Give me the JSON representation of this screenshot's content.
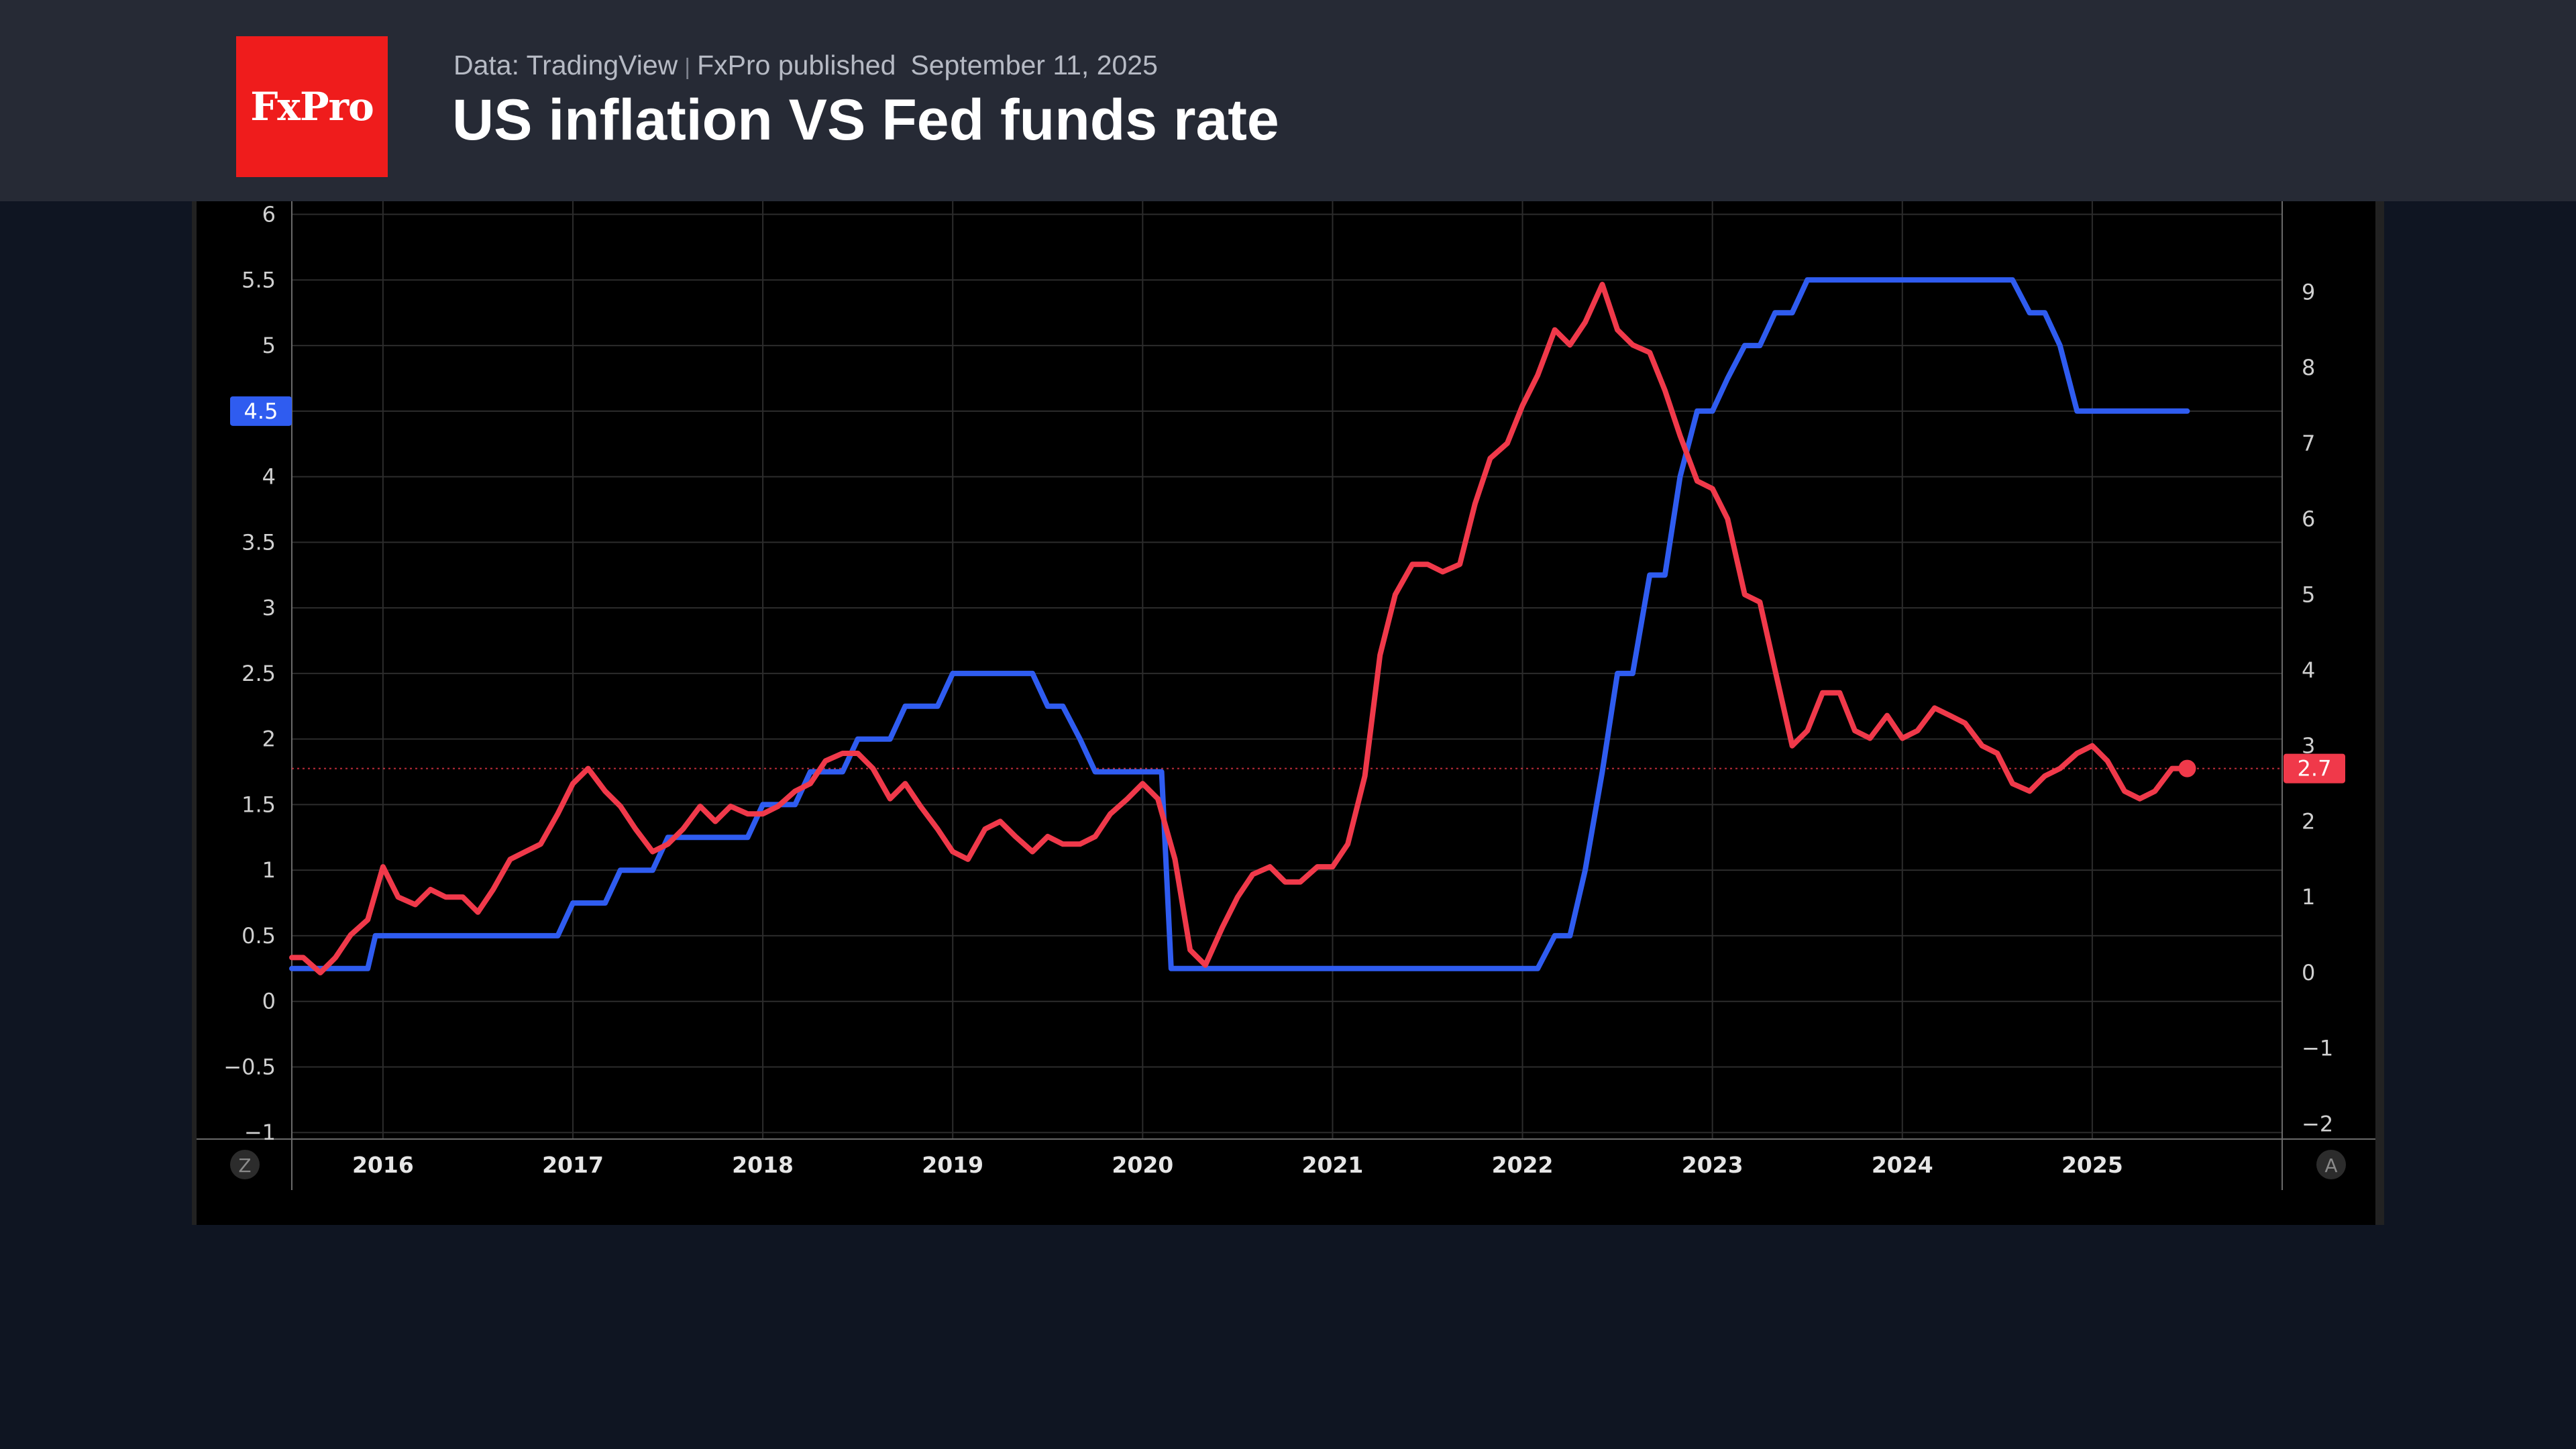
{
  "header": {
    "logo_text": "FxPro",
    "source": "Data: TradingView",
    "separator": "|",
    "publisher": "FxPro published",
    "date": "September 11, 2025",
    "title": "US inflation VS Fed funds rate"
  },
  "colors": {
    "fed_funds": "#2f5cf0",
    "inflation": "#f0394a",
    "logo": "#ef1c1c"
  },
  "chart_data": {
    "type": "line",
    "title": "US inflation VS Fed funds rate",
    "grid": true,
    "left_axis": {
      "ticks": [
        "6",
        "5.5",
        "5",
        "4.5",
        "4",
        "3.5",
        "3",
        "2.5",
        "2",
        "1.5",
        "1",
        "0.5",
        "0",
        "−0.5",
        "−1"
      ],
      "range": [
        -1.05,
        6.1
      ],
      "last_value_label": "4.5"
    },
    "right_axis": {
      "ticks": [
        "9",
        "8",
        "7",
        "6",
        "5",
        "4",
        "3",
        "2",
        "1",
        "0",
        "−1",
        "−2"
      ],
      "range": [
        -2.2,
        10.2
      ],
      "last_value_label": "2.7"
    },
    "x_axis": {
      "ticks": [
        "2016",
        "2017",
        "2018",
        "2019",
        "2020",
        "2021",
        "2022",
        "2023",
        "2024",
        "2025"
      ],
      "range": [
        2015.52,
        2026.0
      ]
    },
    "corner_labels": {
      "left": "Z",
      "right": "A"
    },
    "series": [
      {
        "axis": "left",
        "x": [
          2015.52,
          2015.92,
          2015.96,
          2016.92,
          2017.0,
          2017.17,
          2017.25,
          2017.42,
          2017.5,
          2017.92,
          2018.0,
          2018.17,
          2018.25,
          2018.42,
          2018.5,
          2018.67,
          2018.75,
          2018.92,
          2019.0,
          2019.42,
          2019.5,
          2019.58,
          2019.67,
          2019.75,
          2019.83,
          2020.1,
          2020.15,
          2020.2,
          2022.08,
          2022.17,
          2022.25,
          2022.33,
          2022.42,
          2022.5,
          2022.58,
          2022.67,
          2022.75,
          2022.83,
          2022.92,
          2023.0,
          2023.08,
          2023.17,
          2023.25,
          2023.33,
          2023.42,
          2023.5,
          2023.58,
          2024.58,
          2024.67,
          2024.75,
          2024.83,
          2024.92,
          2025.5
        ],
        "values": [
          0.25,
          0.25,
          0.5,
          0.5,
          0.75,
          0.75,
          1.0,
          1.0,
          1.25,
          1.25,
          1.5,
          1.5,
          1.75,
          1.75,
          2.0,
          2.0,
          2.25,
          2.25,
          2.5,
          2.5,
          2.25,
          2.25,
          2.0,
          1.75,
          1.75,
          1.75,
          0.25,
          0.25,
          0.25,
          0.5,
          0.5,
          1.0,
          1.75,
          2.5,
          2.5,
          3.25,
          3.25,
          4.0,
          4.5,
          4.5,
          4.75,
          5.0,
          5.0,
          5.25,
          5.25,
          5.5,
          5.5,
          5.5,
          5.25,
          5.25,
          5.0,
          4.5,
          4.5
        ]
      },
      {
        "axis": "right",
        "x": [
          2015.52,
          2015.58,
          2015.67,
          2015.75,
          2015.83,
          2015.92,
          2016.0,
          2016.08,
          2016.17,
          2016.25,
          2016.33,
          2016.42,
          2016.5,
          2016.58,
          2016.67,
          2016.75,
          2016.83,
          2016.92,
          2017.0,
          2017.08,
          2017.17,
          2017.25,
          2017.33,
          2017.42,
          2017.5,
          2017.58,
          2017.67,
          2017.75,
          2017.83,
          2017.92,
          2018.0,
          2018.08,
          2018.17,
          2018.25,
          2018.33,
          2018.42,
          2018.5,
          2018.58,
          2018.67,
          2018.75,
          2018.83,
          2018.92,
          2019.0,
          2019.08,
          2019.17,
          2019.25,
          2019.33,
          2019.42,
          2019.5,
          2019.58,
          2019.67,
          2019.75,
          2019.83,
          2019.92,
          2020.0,
          2020.08,
          2020.17,
          2020.25,
          2020.33,
          2020.42,
          2020.5,
          2020.58,
          2020.67,
          2020.75,
          2020.83,
          2020.92,
          2021.0,
          2021.08,
          2021.17,
          2021.25,
          2021.33,
          2021.42,
          2021.5,
          2021.58,
          2021.67,
          2021.75,
          2021.83,
          2021.92,
          2022.0,
          2022.08,
          2022.17,
          2022.25,
          2022.33,
          2022.42,
          2022.5,
          2022.58,
          2022.67,
          2022.75,
          2022.83,
          2022.92,
          2023.0,
          2023.08,
          2023.17,
          2023.25,
          2023.33,
          2023.42,
          2023.5,
          2023.58,
          2023.67,
          2023.75,
          2023.83,
          2023.92,
          2024.0,
          2024.08,
          2024.17,
          2024.25,
          2024.33,
          2024.42,
          2024.5,
          2024.58,
          2024.67,
          2024.75,
          2024.83,
          2024.92,
          2025.0,
          2025.08,
          2025.17,
          2025.25,
          2025.33,
          2025.42,
          2025.5
        ],
        "values": [
          0.2,
          0.2,
          0.0,
          0.2,
          0.5,
          0.7,
          1.4,
          1.0,
          0.9,
          1.1,
          1.0,
          1.0,
          0.8,
          1.1,
          1.5,
          1.6,
          1.7,
          2.1,
          2.5,
          2.7,
          2.4,
          2.2,
          1.9,
          1.6,
          1.7,
          1.9,
          2.2,
          2.0,
          2.2,
          2.1,
          2.1,
          2.2,
          2.4,
          2.5,
          2.8,
          2.9,
          2.9,
          2.7,
          2.3,
          2.5,
          2.2,
          1.9,
          1.6,
          1.5,
          1.9,
          2.0,
          1.8,
          1.6,
          1.8,
          1.7,
          1.7,
          1.8,
          2.1,
          2.3,
          2.5,
          2.3,
          1.5,
          0.3,
          0.1,
          0.6,
          1.0,
          1.3,
          1.4,
          1.2,
          1.2,
          1.4,
          1.4,
          1.7,
          2.6,
          4.2,
          5.0,
          5.4,
          5.4,
          5.3,
          5.4,
          6.2,
          6.8,
          7.0,
          7.5,
          7.9,
          8.5,
          8.3,
          8.6,
          9.1,
          8.5,
          8.3,
          8.2,
          7.7,
          7.1,
          6.5,
          6.4,
          6.0,
          5.0,
          4.9,
          4.0,
          3.0,
          3.2,
          3.7,
          3.7,
          3.2,
          3.1,
          3.4,
          3.1,
          3.2,
          3.5,
          3.4,
          3.3,
          3.0,
          2.9,
          2.5,
          2.4,
          2.6,
          2.7,
          2.9,
          3.0,
          2.8,
          2.4,
          2.3,
          2.4,
          2.7,
          2.7
        ]
      }
    ]
  }
}
